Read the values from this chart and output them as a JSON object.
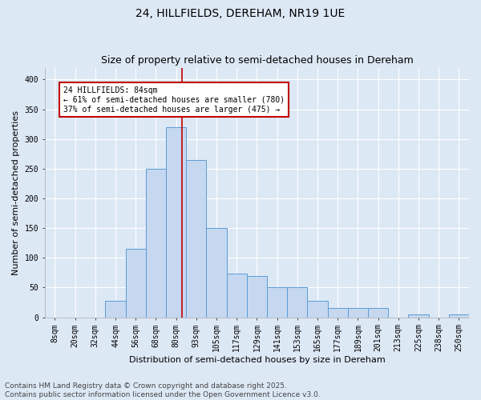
{
  "title": "24, HILLFIELDS, DEREHAM, NR19 1UE",
  "subtitle": "Size of property relative to semi-detached houses in Dereham",
  "xlabel": "Distribution of semi-detached houses by size in Dereham",
  "ylabel": "Number of semi-detached properties",
  "footer": "Contains HM Land Registry data © Crown copyright and database right 2025.\nContains public sector information licensed under the Open Government Licence v3.0.",
  "bar_labels": [
    "8sqm",
    "20sqm",
    "32sqm",
    "44sqm",
    "56sqm",
    "68sqm",
    "80sqm",
    "93sqm",
    "105sqm",
    "117sqm",
    "129sqm",
    "141sqm",
    "153sqm",
    "165sqm",
    "177sqm",
    "189sqm",
    "201sqm",
    "213sqm",
    "225sqm",
    "238sqm",
    "250sqm"
  ],
  "bar_values": [
    0,
    0,
    0,
    28,
    115,
    250,
    320,
    265,
    150,
    73,
    70,
    50,
    50,
    28,
    16,
    15,
    15,
    0,
    5,
    0,
    5
  ],
  "bar_color": "#c5d8f0",
  "bar_edge_color": "#5b9bd5",
  "vline_x": 6.31,
  "vline_color": "#c00000",
  "annotation_text": "24 HILLFIELDS: 84sqm\n← 61% of semi-detached houses are smaller (780)\n37% of semi-detached houses are larger (475) →",
  "annotation_box_color": "#ffffff",
  "annotation_box_edge_color": "#c00000",
  "ylim": [
    0,
    420
  ],
  "yticks": [
    0,
    50,
    100,
    150,
    200,
    250,
    300,
    350,
    400
  ],
  "background_color": "#dde8f5",
  "grid_color": "#ffffff",
  "title_fontsize": 10,
  "subtitle_fontsize": 9,
  "axis_label_fontsize": 8,
  "tick_fontsize": 7,
  "footer_fontsize": 6.5
}
